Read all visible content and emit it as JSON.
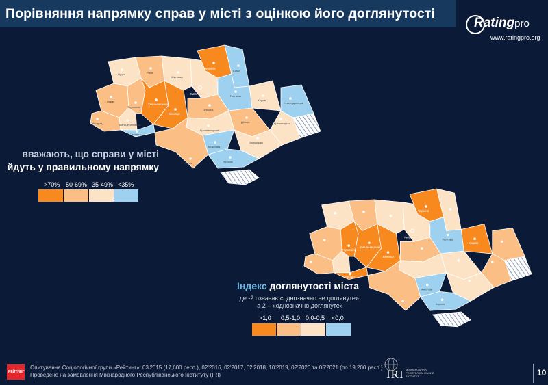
{
  "title": "Порівняння напрямку справ у місті з оцінкою його доглянутості",
  "logo": {
    "main": "Rating",
    "pro": "pro",
    "url": "www.ratingpro.org"
  },
  "colors": {
    "c1": "#f7891f",
    "c2": "#fbbf86",
    "c3": "#fde3c6",
    "c4": "#9dd1ef",
    "occupied": "#ffffff"
  },
  "map1": {
    "caption_line1": "вважають, що справи у місті",
    "caption_line2": "йдуть у правильному напрямку",
    "legend": [
      ">70%",
      "50-69%",
      "35-49%",
      "<35%"
    ],
    "cities": {
      "chernihiv": "Чернігів",
      "sumy": "Суми",
      "kyiv": "Київ",
      "poltava": "Полтава",
      "khmelnytskyi": "Хмельницький",
      "vinnytsia": "Вінниця",
      "ternopil": "Тернопіль",
      "chernivtsi": "Чернівці",
      "mykolaiv": "Миколаїв",
      "kherson": "Херсон",
      "lutsk": "Луцьк",
      "rivne": "Рівне",
      "zhytomyr": "Житомир",
      "lviv": "Львів",
      "uzhhorod": "Ужгород",
      "cherkasy": "Черкаси",
      "kharkiv": "Харків",
      "dnipro": "Дніпро",
      "odesa": "Одеса",
      "zaporizhzhia": "Запоріжжя",
      "kramatorsk": "Краматорськ",
      "severodonetsk": "Сєвєродонецьк",
      "kropyvnytskyi": "Кропивницький",
      "ivano": "Івано-Франківськ"
    }
  },
  "map2": {
    "caption_word1": "Індекс",
    "caption_rest": "доглянутості міста",
    "subtitle_line1": "де -2 означає «однозначно не доглянуте»,",
    "subtitle_line2": "а 2 – «однозначно доглянуте»",
    "legend": [
      ">1,0",
      "0,5-1,0",
      "0,0-0,5",
      "<0,0"
    ]
  },
  "footer": {
    "line1": "Опитування Соціологічної групи «Рейтинг»: 03'2015 (17,600 респ.), 02'2016, 02'2017, 02'2018, 10'2019, 02'2020 та 05'2021 (по 19,200 респ.).",
    "line2": "Проведене на замовлення Міжнародного Республіканського Інституту (IRI)",
    "rating_logo": "РЕЙТИНГ",
    "iri": "IRI",
    "iri_sub": "МІЖНАРОДНИЙ РЕСПУБЛІКАНСЬКИЙ ІНСТИТУТ"
  },
  "page_number": "10"
}
